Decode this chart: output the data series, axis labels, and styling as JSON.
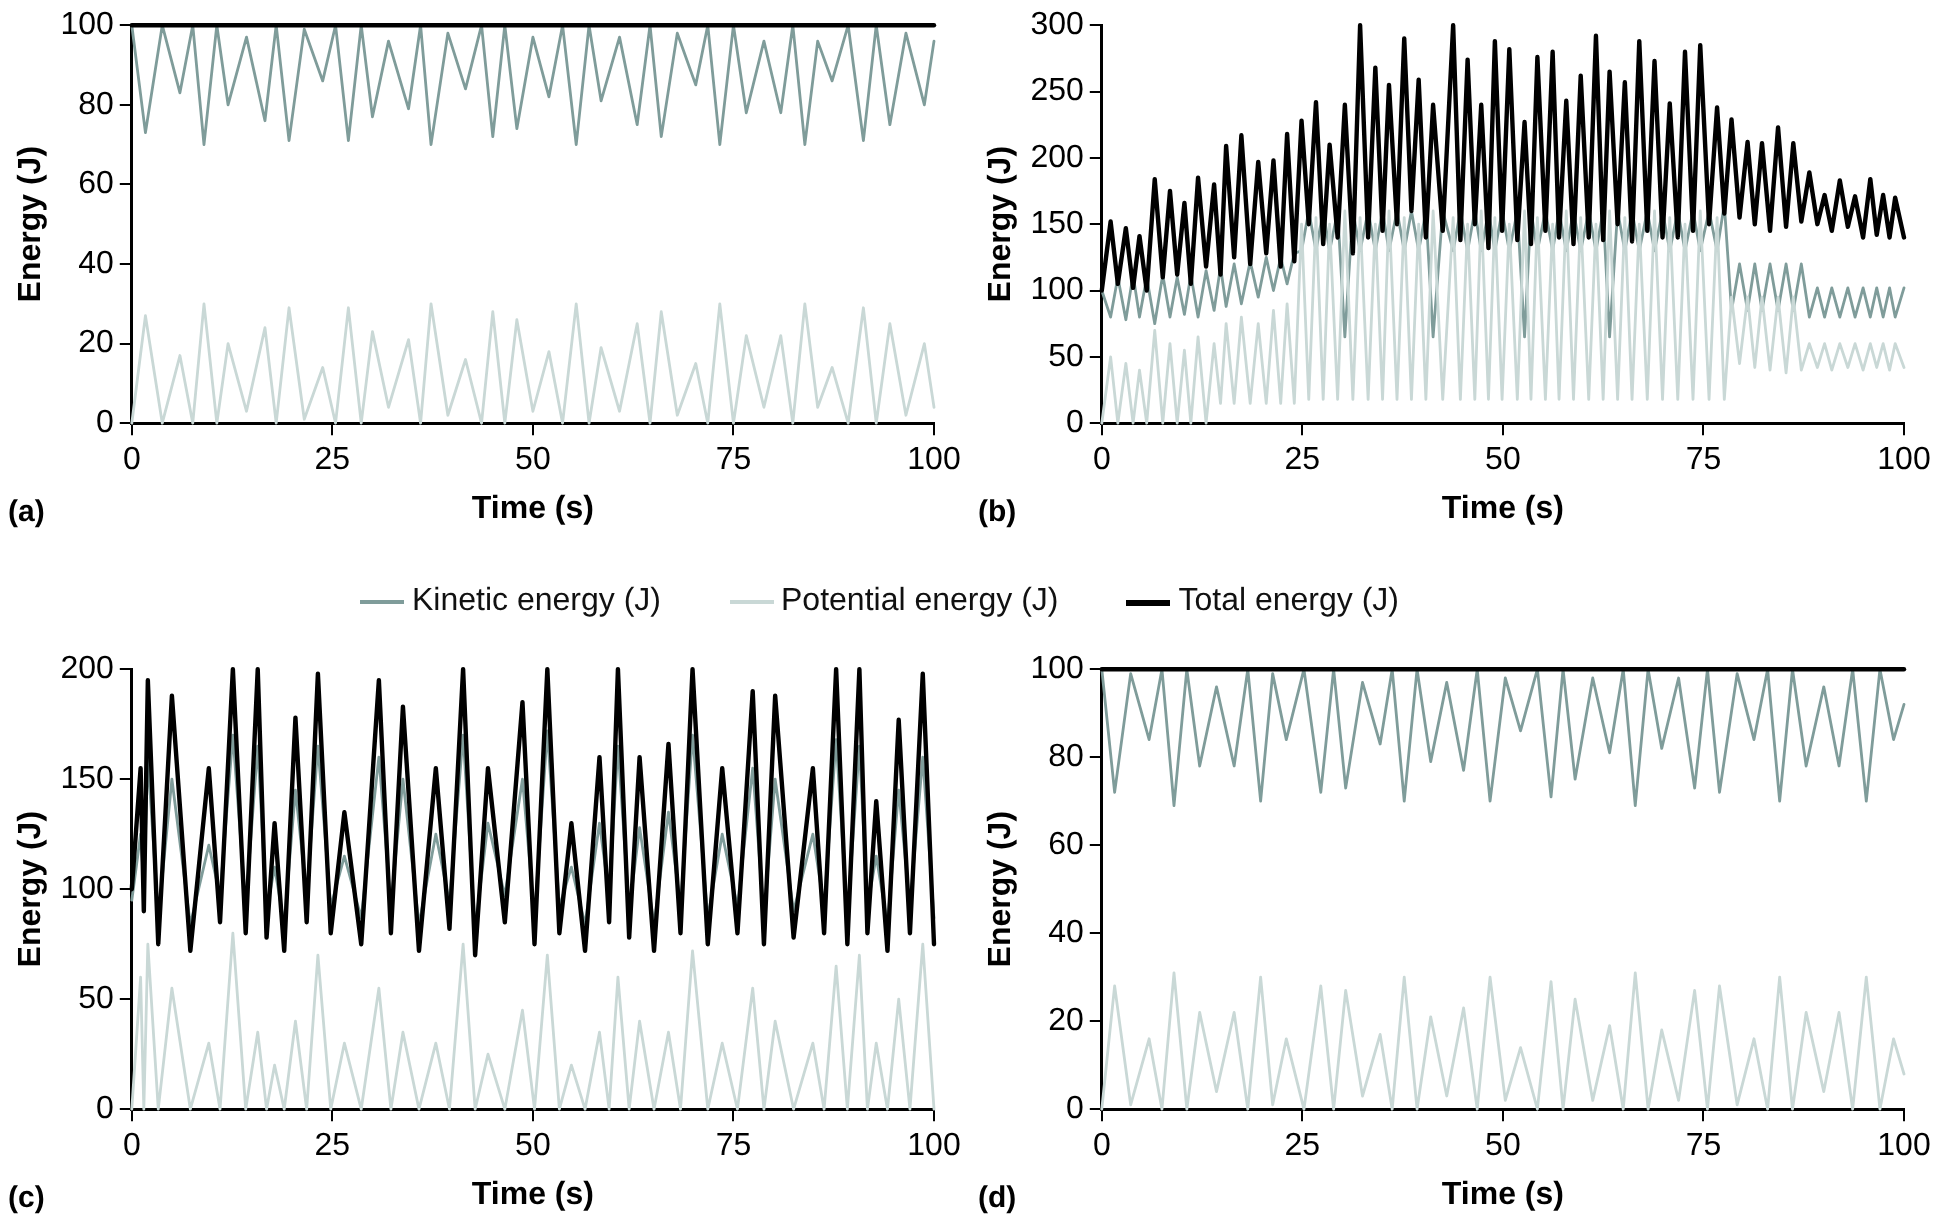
{
  "chart_data": [
    {
      "type": "line",
      "xlabel": "Time (s)",
      "ylabel": "Energy (J)",
      "annotations": [
        "(a)"
      ],
      "xlim": [
        0,
        100
      ],
      "xticks": [
        0,
        25,
        50,
        75,
        100
      ],
      "ylim": [
        0,
        100
      ],
      "yticks": [
        0,
        20,
        40,
        60,
        80,
        100
      ],
      "x": [
        0,
        1.7,
        3.8,
        6,
        7.6,
        9,
        10.6,
        12,
        14.3,
        16.6,
        18,
        19.6,
        21.5,
        23.8,
        25.4,
        27,
        28.6,
        30,
        32,
        34.5,
        36,
        37.3,
        39.4,
        41.6,
        43.6,
        45,
        46.5,
        48,
        50,
        52,
        53.7,
        55.4,
        57,
        58.5,
        60.8,
        63,
        64.6,
        66,
        68,
        70.3,
        71.8,
        73.3,
        75,
        76.6,
        78.8,
        80.9,
        82.4,
        83.9,
        85.5,
        87.3,
        89.3,
        91.2,
        92.8,
        94.5,
        96.5,
        98.8,
        100
      ],
      "series": [
        {
          "color": "#7f9c9a",
          "values": [
            100,
            73,
            100,
            83,
            100,
            70,
            100,
            80,
            97,
            76,
            100,
            71,
            99,
            86,
            100,
            71,
            100,
            77,
            96,
            79,
            100,
            70,
            98,
            84,
            100,
            72,
            100,
            74,
            97,
            82,
            100,
            70,
            100,
            81,
            97,
            75,
            100,
            72,
            98,
            85,
            100,
            70,
            100,
            78,
            96,
            78,
            100,
            70,
            96,
            86,
            100,
            71,
            100,
            75,
            98,
            80,
            96
          ]
        },
        {
          "color": "#c9d8d6",
          "values": [
            0,
            27,
            0,
            17,
            0,
            30,
            0,
            20,
            3,
            24,
            0,
            29,
            1,
            14,
            0,
            29,
            0,
            23,
            4,
            21,
            0,
            30,
            2,
            16,
            0,
            28,
            0,
            26,
            3,
            18,
            0,
            30,
            0,
            19,
            3,
            25,
            0,
            28,
            2,
            15,
            0,
            30,
            0,
            22,
            4,
            22,
            0,
            30,
            4,
            14,
            0,
            29,
            0,
            25,
            2,
            20,
            4
          ]
        },
        {
          "color": "#000000",
          "values": [
            100,
            100,
            100,
            100,
            100,
            100,
            100,
            100,
            100,
            100,
            100,
            100,
            100,
            100,
            100,
            100,
            100,
            100,
            100,
            100,
            100,
            100,
            100,
            100,
            100,
            100,
            100,
            100,
            100,
            100,
            100,
            100,
            100,
            100,
            100,
            100,
            100,
            100,
            100,
            100,
            100,
            100,
            100,
            100,
            100,
            100,
            100,
            100,
            100,
            100,
            100,
            100,
            100,
            100,
            100,
            100,
            100
          ]
        }
      ]
    },
    {
      "type": "line",
      "xlabel": "Time (s)",
      "ylabel": "Energy (J)",
      "annotations": [
        "(b)"
      ],
      "xlim": [
        0,
        100
      ],
      "xticks": [
        0,
        25,
        50,
        75,
        100
      ],
      "ylim": [
        0,
        300
      ],
      "yticks": [
        0,
        50,
        100,
        150,
        200,
        250,
        300
      ],
      "x": [
        0,
        1.1,
        2,
        3,
        3.9,
        4.7,
        5.6,
        6.6,
        7.6,
        8.5,
        9.4,
        10.3,
        11.1,
        12,
        13,
        14,
        14.8,
        15.5,
        16.5,
        17.4,
        18.5,
        19.5,
        20.5,
        21.4,
        22.3,
        23.1,
        24,
        24.9,
        25.8,
        26.7,
        27.6,
        28.4,
        29.4,
        30.3,
        31.3,
        32.2,
        33.2,
        34.1,
        35,
        35.8,
        36.8,
        37.7,
        38.6,
        39.5,
        40.4,
        41.3,
        42.5,
        43.8,
        44.7,
        45.6,
        46.5,
        47.3,
        48.2,
        49,
        49.9,
        50.8,
        51.8,
        52.7,
        53.5,
        54.3,
        55.3,
        56.2,
        57,
        57.9,
        58.8,
        59.7,
        60.7,
        61.6,
        62.5,
        63.3,
        64.3,
        65.2,
        66.1,
        67,
        68,
        68.9,
        69.9,
        70.8,
        71.8,
        72.7,
        73.7,
        74.6,
        75.7,
        76.7,
        77.6,
        78.5,
        79.5,
        80.5,
        81.4,
        82.3,
        83.3,
        84.3,
        85.3,
        86.2,
        87.2,
        88.2,
        89.2,
        90.1,
        91,
        92,
        93,
        93.9,
        94.9,
        95.8,
        96.6,
        97.4,
        98.2,
        98.9,
        100
      ],
      "series": [
        {
          "color": "#7f9c9a",
          "values": [
            100,
            80,
            110,
            78,
            112,
            80,
            110,
            75,
            112,
            80,
            110,
            82,
            112,
            80,
            115,
            85,
            118,
            88,
            120,
            90,
            122,
            95,
            125,
            100,
            125,
            105,
            128,
            130,
            160,
            130,
            160,
            130,
            160,
            65,
            160,
            130,
            160,
            130,
            160,
            130,
            160,
            130,
            160,
            130,
            160,
            65,
            160,
            130,
            160,
            130,
            160,
            130,
            160,
            130,
            160,
            130,
            160,
            65,
            160,
            130,
            160,
            130,
            160,
            130,
            160,
            130,
            160,
            130,
            160,
            65,
            160,
            130,
            160,
            130,
            160,
            130,
            160,
            130,
            160,
            130,
            160,
            130,
            160,
            130,
            165,
            85,
            120,
            85,
            120,
            85,
            120,
            85,
            120,
            85,
            120,
            80,
            102,
            80,
            102,
            80,
            102,
            80,
            102,
            80,
            102,
            80,
            102,
            80,
            102
          ]
        },
        {
          "color": "#c9d8d6",
          "values": [
            0,
            50,
            0,
            45,
            0,
            40,
            0,
            70,
            0,
            60,
            0,
            55,
            0,
            65,
            0,
            60,
            15,
            75,
            15,
            80,
            15,
            75,
            15,
            85,
            15,
            90,
            15,
            150,
            18,
            155,
            18,
            150,
            18,
            160,
            18,
            155,
            18,
            150,
            18,
            160,
            18,
            155,
            18,
            150,
            18,
            160,
            18,
            155,
            18,
            150,
            18,
            160,
            18,
            155,
            18,
            150,
            18,
            160,
            18,
            155,
            18,
            150,
            18,
            160,
            18,
            155,
            18,
            150,
            18,
            160,
            18,
            155,
            18,
            150,
            18,
            160,
            18,
            155,
            18,
            150,
            18,
            160,
            18,
            155,
            18,
            95,
            45,
            95,
            42,
            95,
            40,
            95,
            38,
            95,
            40,
            60,
            42,
            60,
            40,
            60,
            42,
            60,
            40,
            60,
            42,
            60,
            40,
            60,
            42
          ]
        },
        {
          "color": "#000000",
          "values": [
            100,
            152,
            105,
            147,
            102,
            141,
            100,
            184,
            110,
            175,
            112,
            166,
            105,
            185,
            118,
            180,
            112,
            209,
            125,
            217,
            120,
            197,
            128,
            198,
            118,
            218,
            122,
            228,
            150,
            242,
            135,
            210,
            140,
            240,
            128,
            300,
            140,
            268,
            145,
            255,
            150,
            290,
            160,
            259,
            140,
            240,
            145,
            300,
            138,
            274,
            150,
            240,
            132,
            288,
            145,
            282,
            138,
            227,
            135,
            276,
            145,
            280,
            140,
            243,
            135,
            262,
            140,
            292,
            138,
            265,
            150,
            257,
            137,
            288,
            145,
            273,
            140,
            241,
            140,
            280,
            145,
            285,
            150,
            238,
            158,
            229,
            155,
            212,
            150,
            211,
            145,
            223,
            148,
            211,
            152,
            189,
            150,
            172,
            145,
            183,
            148,
            171,
            140,
            184,
            142,
            172,
            140,
            170,
            140
          ]
        }
      ]
    },
    {
      "type": "line",
      "xlabel": "Time (s)",
      "ylabel": "Energy (J)",
      "annotations": [
        "(c)"
      ],
      "legend": "top",
      "xlim": [
        0,
        100
      ],
      "xticks": [
        0,
        25,
        50,
        75,
        100
      ],
      "ylim": [
        0,
        200
      ],
      "yticks": [
        0,
        50,
        100,
        150,
        200
      ],
      "x": [
        0,
        1.1,
        1.5,
        2,
        3.3,
        5,
        7.3,
        9.6,
        11,
        12.6,
        14.2,
        15.7,
        16.8,
        17.8,
        19,
        20.4,
        21.8,
        23.2,
        24.8,
        26.5,
        28.6,
        30.8,
        32.3,
        33.8,
        35.8,
        37.9,
        39.6,
        41.3,
        42.8,
        44.4,
        46.5,
        48.7,
        50.2,
        51.8,
        53.3,
        54.8,
        56.5,
        58.3,
        59.5,
        60.6,
        62,
        63.3,
        65.1,
        66.9,
        68.4,
        69.9,
        71.8,
        73.6,
        75.5,
        77.4,
        78.8,
        80.2,
        82.5,
        84.9,
        86.3,
        87.8,
        89.2,
        90.7,
        91.7,
        92.8,
        94.2,
        95.6,
        97,
        98.6,
        100
      ],
      "series": [
        {
          "name": "Kinetic energy (J)",
          "color": "#7f9c9a",
          "values": [
            95,
            125,
            102,
            160,
            87,
            150,
            84,
            120,
            97,
            170,
            92,
            165,
            90,
            110,
            84,
            145,
            97,
            165,
            92,
            115,
            87,
            160,
            92,
            150,
            84,
            125,
            94,
            170,
            82,
            130,
            97,
            150,
            87,
            172,
            92,
            110,
            84,
            130,
            97,
            165,
            90,
            128,
            84,
            135,
            92,
            170,
            87,
            125,
            92,
            155,
            87,
            150,
            90,
            125,
            92,
            168,
            87,
            165,
            92,
            115,
            84,
            145,
            92,
            160,
            87
          ]
        },
        {
          "name": "Potential energy (J)",
          "color": "#c9d8d6",
          "values": [
            0,
            60,
            0,
            75,
            0,
            55,
            0,
            30,
            0,
            80,
            0,
            35,
            0,
            20,
            0,
            40,
            0,
            70,
            0,
            30,
            0,
            55,
            0,
            35,
            0,
            30,
            0,
            75,
            0,
            25,
            0,
            45,
            0,
            70,
            0,
            20,
            0,
            35,
            0,
            60,
            0,
            40,
            0,
            35,
            0,
            72,
            0,
            30,
            0,
            55,
            0,
            40,
            0,
            30,
            0,
            65,
            0,
            70,
            0,
            30,
            0,
            50,
            0,
            75,
            0
          ]
        },
        {
          "name": "Total energy (J)",
          "color": "#000000",
          "values": [
            100,
            155,
            90,
            195,
            75,
            188,
            72,
            155,
            85,
            200,
            80,
            200,
            78,
            130,
            72,
            178,
            85,
            198,
            80,
            135,
            75,
            195,
            80,
            183,
            72,
            155,
            82,
            200,
            70,
            155,
            85,
            185,
            75,
            200,
            80,
            130,
            72,
            160,
            85,
            200,
            78,
            160,
            72,
            166,
            80,
            200,
            75,
            155,
            80,
            190,
            75,
            188,
            78,
            155,
            80,
            200,
            75,
            200,
            80,
            140,
            72,
            177,
            80,
            198,
            75
          ]
        }
      ]
    },
    {
      "type": "line",
      "xlabel": "Time (s)",
      "ylabel": "Energy (J)",
      "annotations": [
        "(d)"
      ],
      "xlim": [
        0,
        100
      ],
      "xticks": [
        0,
        25,
        50,
        75,
        100
      ],
      "ylim": [
        0,
        100
      ],
      "yticks": [
        0,
        20,
        40,
        60,
        80,
        100
      ],
      "x": [
        0,
        1.6,
        3.6,
        5.9,
        7.5,
        9,
        10.6,
        12.2,
        14.3,
        16.5,
        18.2,
        19.8,
        21.3,
        23,
        25.2,
        27.3,
        28.9,
        30.4,
        32.5,
        34.7,
        36.2,
        37.7,
        39.3,
        41,
        43,
        45.1,
        46.8,
        48.4,
        50.3,
        52.2,
        54.3,
        56,
        57.5,
        59,
        61.2,
        63.3,
        65,
        66.5,
        68.1,
        69.8,
        71.9,
        73.9,
        75.5,
        77,
        79.2,
        81.3,
        83,
        84.5,
        86.1,
        87.8,
        90,
        91.9,
        93.6,
        95.3,
        97,
        98.7,
        100
      ],
      "series": [
        {
          "color": "#7f9c9a",
          "values": [
            100,
            72,
            99,
            84,
            100,
            69,
            100,
            78,
            96,
            78,
            100,
            70,
            99,
            84,
            100,
            72,
            100,
            73,
            97,
            83,
            100,
            70,
            100,
            79,
            97,
            77,
            100,
            70,
            98,
            86,
            100,
            71,
            100,
            75,
            98,
            81,
            100,
            69,
            100,
            82,
            98,
            73,
            100,
            72,
            99,
            84,
            100,
            70,
            100,
            78,
            96,
            78,
            100,
            70,
            100,
            84,
            92
          ]
        },
        {
          "color": "#c9d8d6",
          "values": [
            0,
            28,
            1,
            16,
            0,
            31,
            0,
            22,
            4,
            22,
            0,
            30,
            1,
            16,
            0,
            28,
            0,
            27,
            3,
            17,
            0,
            30,
            0,
            21,
            3,
            23,
            0,
            30,
            2,
            14,
            0,
            29,
            0,
            25,
            2,
            19,
            0,
            31,
            0,
            18,
            2,
            27,
            0,
            28,
            1,
            16,
            0,
            30,
            0,
            22,
            4,
            22,
            0,
            30,
            0,
            16,
            8
          ]
        },
        {
          "color": "#000000",
          "values": [
            100,
            100,
            100,
            100,
            100,
            100,
            100,
            100,
            100,
            100,
            100,
            100,
            100,
            100,
            100,
            100,
            100,
            100,
            100,
            100,
            100,
            100,
            100,
            100,
            100,
            100,
            100,
            100,
            100,
            100,
            100,
            100,
            100,
            100,
            100,
            100,
            100,
            100,
            100,
            100,
            100,
            100,
            100,
            100,
            100,
            100,
            100,
            100,
            100,
            100,
            100,
            100,
            100,
            100,
            100,
            100,
            100
          ]
        }
      ]
    }
  ]
}
